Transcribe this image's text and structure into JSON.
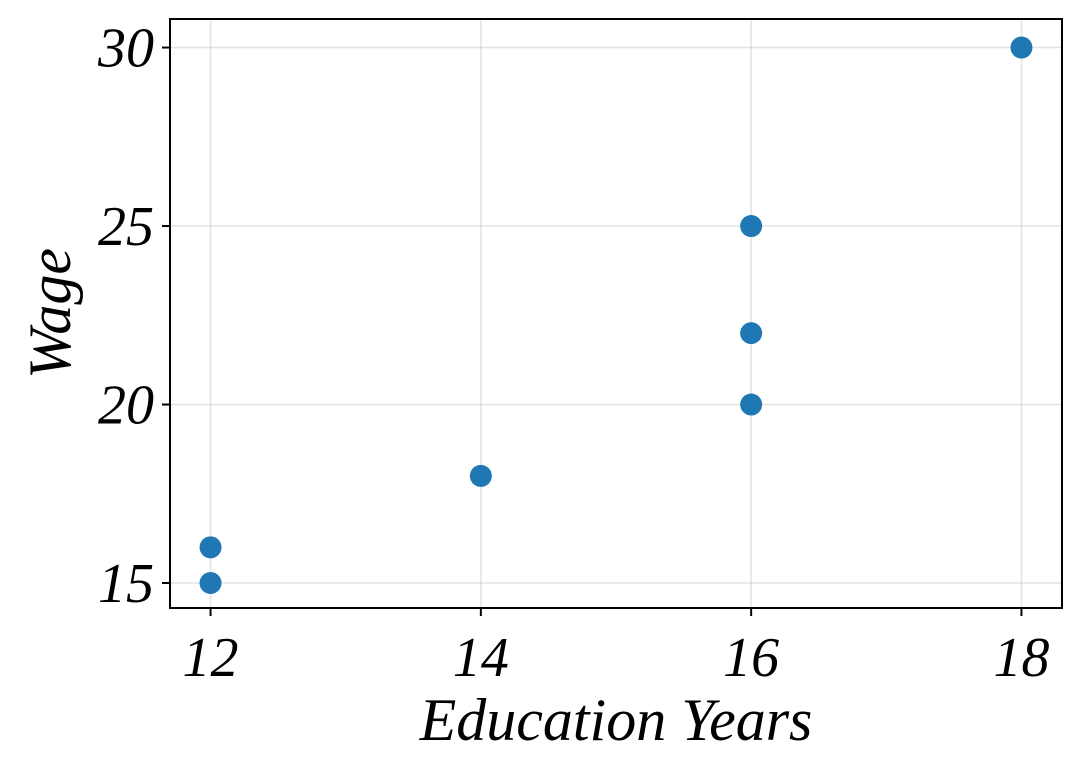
{
  "chart_data": {
    "type": "scatter",
    "title": "",
    "xlabel": "Education Years",
    "ylabel": "Wage",
    "xlim": [
      11.7,
      18.3
    ],
    "ylim": [
      14.3,
      30.8
    ],
    "xticks": [
      12,
      14,
      16,
      18
    ],
    "yticks": [
      15,
      20,
      25,
      30
    ],
    "grid": true,
    "marker_color": "#1f77b4",
    "series": [
      {
        "points": [
          {
            "x": 12,
            "y": 15
          },
          {
            "x": 12,
            "y": 16
          },
          {
            "x": 14,
            "y": 18
          },
          {
            "x": 16,
            "y": 20
          },
          {
            "x": 16,
            "y": 22
          },
          {
            "x": 16,
            "y": 25
          },
          {
            "x": 18,
            "y": 30
          }
        ]
      }
    ]
  }
}
